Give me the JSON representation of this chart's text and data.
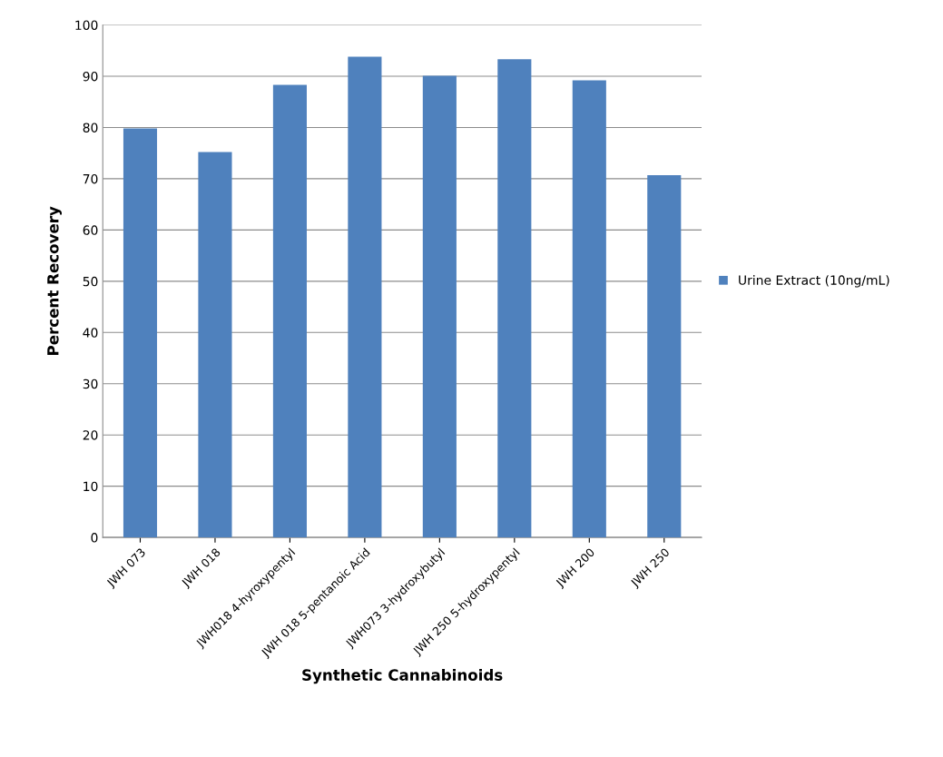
{
  "chart_data": {
    "type": "bar",
    "xlabel": "Synthetic Cannabinoids",
    "ylabel": "Percent Recovery",
    "categories": [
      "JWH 073",
      "JWH 018",
      "JWH018 4-hyroxypentyl",
      "JWH 018 5-pentanoic Acid",
      "JWH073 3-hydroxybutyl",
      "JWH 250 5-hydroxypentyl",
      "JWH 200",
      "JWH 250"
    ],
    "series": [
      {
        "name": "Urine Extract (10ng/mL)",
        "color": "#4f81bd",
        "values": [
          79.8,
          75.2,
          88.3,
          93.8,
          90.1,
          93.3,
          89.2,
          70.7
        ]
      }
    ],
    "ylim": [
      0,
      100
    ],
    "yticks": [
      0,
      10,
      20,
      30,
      40,
      50,
      60,
      70,
      80,
      90,
      100
    ],
    "grid": "y",
    "legend": "right"
  }
}
